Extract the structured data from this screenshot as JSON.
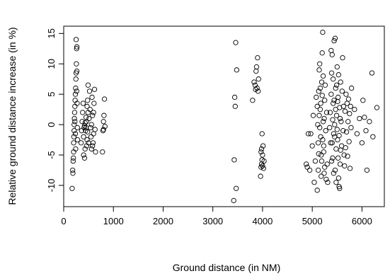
{
  "chart_data": {
    "type": "scatter",
    "title": "",
    "xlabel": "Ground distance (in NM)",
    "ylabel": "Relative ground distance increase (in %)",
    "xlim": [
      0,
      6450
    ],
    "ylim": [
      -13.5,
      16.2
    ],
    "xticks": [
      0,
      1000,
      2000,
      3000,
      4000,
      5000,
      6000
    ],
    "yticks": [
      -10,
      -5,
      0,
      5,
      10,
      15
    ],
    "xtick_labels": [
      "0",
      "1000",
      "2000",
      "3000",
      "4000",
      "5000",
      "6000"
    ],
    "ytick_labels": [
      "-10",
      "-5",
      "0",
      "5",
      "10",
      "15"
    ],
    "grid": false,
    "marker": "open-circle",
    "series": [
      {
        "points": [
          [
            170,
            -10.5
          ],
          [
            180,
            -7.5
          ],
          [
            185,
            -8
          ],
          [
            190,
            -6
          ],
          [
            195,
            -5.5
          ],
          [
            200,
            -4.5
          ],
          [
            200,
            -3
          ],
          [
            205,
            -2
          ],
          [
            210,
            -1
          ],
          [
            210,
            0
          ],
          [
            215,
            1
          ],
          [
            220,
            2
          ],
          [
            225,
            3
          ],
          [
            230,
            4
          ],
          [
            235,
            5
          ],
          [
            240,
            6
          ],
          [
            245,
            7.5
          ],
          [
            250,
            8.5
          ],
          [
            255,
            10
          ],
          [
            260,
            12.5
          ],
          [
            265,
            12.8
          ],
          [
            250,
            14
          ],
          [
            240,
            -4
          ],
          [
            235,
            -1.5
          ],
          [
            225,
            0.5
          ],
          [
            260,
            5.5
          ],
          [
            270,
            3.5
          ],
          [
            275,
            -0.5
          ],
          [
            280,
            -2.5
          ],
          [
            265,
            8.8
          ],
          [
            350,
            -3
          ],
          [
            360,
            -1
          ],
          [
            370,
            0.5
          ],
          [
            380,
            2
          ],
          [
            390,
            3.5
          ],
          [
            400,
            -2
          ],
          [
            410,
            -0.5
          ],
          [
            420,
            -0.2
          ],
          [
            430,
            0.3
          ],
          [
            440,
            -1
          ],
          [
            450,
            1.2
          ],
          [
            460,
            -3.5
          ],
          [
            470,
            3
          ],
          [
            480,
            4
          ],
          [
            490,
            6.5
          ],
          [
            400,
            -5
          ],
          [
            420,
            -5.5
          ],
          [
            430,
            -4
          ],
          [
            450,
            -0.5
          ],
          [
            460,
            0.5
          ],
          [
            470,
            -2.5
          ],
          [
            480,
            -1.2
          ],
          [
            490,
            2
          ],
          [
            500,
            -3
          ],
          [
            510,
            1
          ],
          [
            520,
            5.5
          ],
          [
            530,
            2.5
          ],
          [
            540,
            -0.5
          ],
          [
            550,
            -2
          ],
          [
            560,
            -4
          ],
          [
            570,
            4.5
          ],
          [
            580,
            1.5
          ],
          [
            590,
            -3
          ],
          [
            600,
            -1.5
          ],
          [
            610,
            3.5
          ],
          [
            620,
            5.8
          ],
          [
            630,
            -0.8
          ],
          [
            640,
            -4.5
          ],
          [
            560,
            0
          ],
          [
            580,
            -3.5
          ],
          [
            600,
            2
          ],
          [
            780,
            -4.5
          ],
          [
            790,
            -1
          ],
          [
            800,
            0.5
          ],
          [
            810,
            1.5
          ],
          [
            820,
            4.2
          ],
          [
            800,
            -0.8
          ],
          [
            830,
            -0.3
          ],
          [
            3420,
            -12.5
          ],
          [
            3430,
            -5.8
          ],
          [
            3440,
            4.5
          ],
          [
            3450,
            3
          ],
          [
            3460,
            13.5
          ],
          [
            3470,
            -10.5
          ],
          [
            3480,
            9
          ],
          [
            3800,
            4
          ],
          [
            3830,
            7
          ],
          [
            3850,
            6.5
          ],
          [
            3860,
            5.8
          ],
          [
            3870,
            8.8
          ],
          [
            3880,
            9.5
          ],
          [
            3890,
            6
          ],
          [
            3900,
            11
          ],
          [
            3910,
            5.5
          ],
          [
            3920,
            7.5
          ],
          [
            3960,
            -8.5
          ],
          [
            3970,
            -7
          ],
          [
            3980,
            -6.5
          ],
          [
            3990,
            -5.8
          ],
          [
            4000,
            -5
          ],
          [
            3980,
            -4
          ],
          [
            4010,
            -3.5
          ],
          [
            3990,
            -1.5
          ],
          [
            4020,
            -7.2
          ],
          [
            4030,
            -6
          ],
          [
            3970,
            -4.5
          ],
          [
            4000,
            -6.8
          ],
          [
            4880,
            -6.5
          ],
          [
            4900,
            -7
          ],
          [
            4920,
            -1.5
          ],
          [
            4950,
            -7.5
          ],
          [
            4970,
            -1.5
          ],
          [
            5000,
            -3.5
          ],
          [
            5020,
            1.5
          ],
          [
            5040,
            -9.5
          ],
          [
            5060,
            -6
          ],
          [
            5080,
            4.5
          ],
          [
            5100,
            -10.8
          ],
          [
            5120,
            -7.5
          ],
          [
            5130,
            5.5
          ],
          [
            5140,
            9
          ],
          [
            5150,
            10
          ],
          [
            5160,
            2.5
          ],
          [
            5170,
            -2
          ],
          [
            5180,
            -5
          ],
          [
            5190,
            7
          ],
          [
            5200,
            11.8
          ],
          [
            5210,
            15.2
          ],
          [
            5220,
            0.5
          ],
          [
            5230,
            -3.5
          ],
          [
            5240,
            -8
          ],
          [
            5250,
            4
          ],
          [
            5260,
            6.5
          ],
          [
            5270,
            -1
          ],
          [
            5280,
            -9
          ],
          [
            5290,
            2
          ],
          [
            5300,
            -6.5
          ],
          [
            5310,
            -9.5
          ],
          [
            5100,
            3
          ],
          [
            5110,
            0
          ],
          [
            5120,
            -3
          ],
          [
            5130,
            -4.8
          ],
          [
            5140,
            1.5
          ],
          [
            5150,
            -0.5
          ],
          [
            5160,
            6
          ],
          [
            5170,
            3.5
          ],
          [
            5180,
            -8.5
          ],
          [
            5190,
            -6
          ],
          [
            5200,
            4.8
          ],
          [
            5210,
            -2.5
          ],
          [
            5220,
            8
          ],
          [
            5230,
            -4.5
          ],
          [
            5240,
            1
          ],
          [
            5250,
            -7
          ],
          [
            5350,
            -0.5
          ],
          [
            5360,
            2
          ],
          [
            5370,
            -3
          ],
          [
            5380,
            5
          ],
          [
            5390,
            8.5
          ],
          [
            5400,
            11.5
          ],
          [
            5410,
            -5.5
          ],
          [
            5420,
            3.5
          ],
          [
            5430,
            -1.5
          ],
          [
            5440,
            13.8
          ],
          [
            5450,
            0
          ],
          [
            5460,
            -7.5
          ],
          [
            5470,
            6
          ],
          [
            5480,
            -4
          ],
          [
            5490,
            1.5
          ],
          [
            5500,
            9.5
          ],
          [
            5510,
            -2.5
          ],
          [
            5520,
            4.5
          ],
          [
            5530,
            -8.8
          ],
          [
            5540,
            -10.2
          ],
          [
            5550,
            2.8
          ],
          [
            5560,
            -6.5
          ],
          [
            5570,
            7
          ],
          [
            5580,
            0.5
          ],
          [
            5590,
            -3.5
          ],
          [
            5600,
            5.5
          ],
          [
            5610,
            11
          ],
          [
            5620,
            -1
          ],
          [
            5630,
            3
          ],
          [
            5640,
            -5
          ],
          [
            5380,
            12.2
          ],
          [
            5390,
            -6
          ],
          [
            5400,
            -3
          ],
          [
            5410,
            0.8
          ],
          [
            5420,
            7.5
          ],
          [
            5430,
            -8
          ],
          [
            5440,
            4
          ],
          [
            5450,
            -2
          ],
          [
            5460,
            14.2
          ],
          [
            5470,
            2.5
          ],
          [
            5480,
            -9.5
          ],
          [
            5490,
            6.5
          ],
          [
            5500,
            -0.8
          ],
          [
            5510,
            3.8
          ],
          [
            5520,
            -5.5
          ],
          [
            5530,
            8.2
          ],
          [
            5540,
            -1.8
          ],
          [
            5550,
            -10.5
          ],
          [
            5560,
            1
          ],
          [
            5570,
            -4.2
          ],
          [
            5650,
            -6.8
          ],
          [
            5660,
            2.2
          ],
          [
            5670,
            -3.8
          ],
          [
            5680,
            5
          ],
          [
            5690,
            -1.2
          ],
          [
            5700,
            3.5
          ],
          [
            5710,
            -5.2
          ],
          [
            5720,
            0.5
          ],
          [
            5730,
            4.2
          ],
          [
            5740,
            -2.8
          ],
          [
            5750,
            1.8
          ],
          [
            5760,
            -7.2
          ],
          [
            5770,
            3
          ],
          [
            5780,
            -0.5
          ],
          [
            5790,
            6
          ],
          [
            5850,
            2.5
          ],
          [
            5900,
            -1.5
          ],
          [
            5950,
            1
          ],
          [
            6000,
            -3
          ],
          [
            6020,
            4
          ],
          [
            6050,
            1.2
          ],
          [
            6080,
            -1
          ],
          [
            6100,
            -7.5
          ],
          [
            6150,
            0.5
          ],
          [
            6200,
            8.5
          ],
          [
            6220,
            -2
          ],
          [
            6300,
            2.8
          ]
        ]
      }
    ]
  }
}
